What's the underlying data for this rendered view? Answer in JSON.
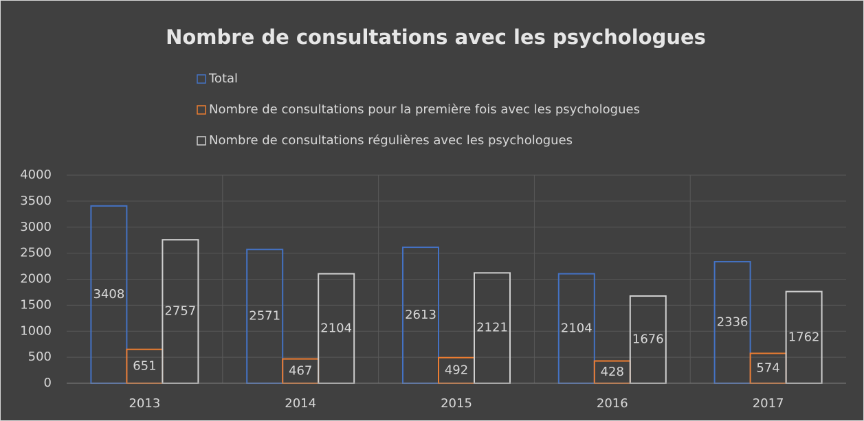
{
  "chart_data": {
    "type": "bar",
    "title": "Nombre de consultations avec les psychologues",
    "categories": [
      "2013",
      "2014",
      "2015",
      "2016",
      "2017"
    ],
    "series": [
      {
        "name": "Total",
        "color": "#4472c4",
        "values": [
          3408,
          2571,
          2613,
          2104,
          2336
        ]
      },
      {
        "name": "Nombre de consultations pour la première fois avec les psychologues",
        "color": "#ed7d31",
        "values": [
          651,
          467,
          492,
          428,
          574
        ]
      },
      {
        "name": "Nombre de consultations régulières avec les psychologues",
        "color": "#d0d0d0",
        "values": [
          2757,
          2104,
          2121,
          1676,
          1762
        ]
      }
    ],
    "ylim": [
      0,
      4000
    ],
    "yticks": [
      0,
      500,
      1000,
      1500,
      2000,
      2500,
      3000,
      3500,
      4000
    ],
    "grid": true
  }
}
